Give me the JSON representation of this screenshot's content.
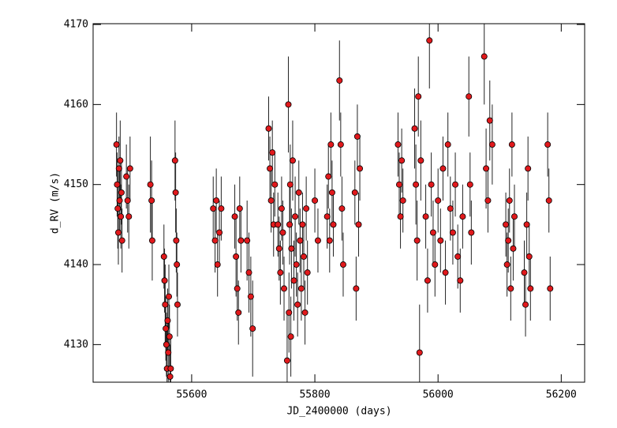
{
  "chart_data": {
    "type": "scatter",
    "xlabel": "JD_2400000 (days)",
    "ylabel": "d_RV (m/s)",
    "color": "#e0191c",
    "xlim": [
      55440,
      56238
    ],
    "ylim": [
      4125.3,
      4170.1
    ],
    "xticks": [
      55600,
      55800,
      56000,
      56200
    ],
    "yticks": [
      4130,
      4140,
      4150,
      4160,
      4170
    ],
    "x": [
      55478,
      55479,
      55480,
      55481,
      55482,
      55483,
      55484,
      55485,
      55486,
      55487,
      55494,
      55496,
      55498,
      55500,
      55533,
      55535,
      55536,
      55555,
      55556,
      55557,
      55558,
      55559,
      55560,
      55561,
      55562,
      55563,
      55564,
      55565,
      55566,
      55573,
      55574,
      55575,
      55576,
      55577,
      55635,
      55638,
      55640,
      55642,
      55645,
      55648,
      55670,
      55672,
      55674,
      55676,
      55678,
      55680,
      55690,
      55693,
      55696,
      55699,
      55725,
      55727,
      55729,
      55731,
      55733,
      55735,
      55740,
      55742,
      55744,
      55746,
      55748,
      55750,
      55755,
      55757,
      55758,
      55759,
      55760,
      55761,
      55762,
      55764,
      55766,
      55768,
      55770,
      55772,
      55774,
      55776,
      55778,
      55780,
      55782,
      55784,
      55786,
      55788,
      55800,
      55805,
      55820,
      55822,
      55824,
      55826,
      55828,
      55830,
      55840,
      55842,
      55844,
      55846,
      55865,
      55867,
      55869,
      55871,
      55873,
      55935,
      55937,
      55939,
      55941,
      55943,
      55962,
      55964,
      55966,
      55968,
      55970,
      55972,
      55980,
      55983,
      55986,
      55989,
      55992,
      55995,
      56000,
      56004,
      56008,
      56012,
      56016,
      56020,
      56024,
      56028,
      56032,
      56036,
      56040,
      56050,
      56052,
      56054,
      56075,
      56078,
      56081,
      56084,
      56088,
      56110,
      56112,
      56114,
      56116,
      56118,
      56120,
      56122,
      56124,
      56140,
      56142,
      56144,
      56146,
      56148,
      56150,
      56178,
      56180,
      56182
    ],
    "y": [
      4155,
      4150,
      4147,
      4144,
      4152,
      4148,
      4153,
      4146,
      4149,
      4143,
      4151,
      4148,
      4146,
      4152,
      4150,
      4148,
      4143,
      4141,
      4138,
      4135,
      4132,
      4130,
      4127,
      4133,
      4129,
      4136,
      4131,
      4126,
      4127,
      4153,
      4149,
      4143,
      4140,
      4135,
      4147,
      4143,
      4148,
      4140,
      4144,
      4147,
      4146,
      4141,
      4137,
      4134,
      4147,
      4143,
      4143,
      4139,
      4136,
      4132,
      4157,
      4152,
      4148,
      4154,
      4145,
      4150,
      4145,
      4142,
      4139,
      4147,
      4144,
      4137,
      4128,
      4160,
      4134,
      4145,
      4150,
      4131,
      4142,
      4153,
      4138,
      4146,
      4140,
      4135,
      4149,
      4143,
      4137,
      4145,
      4141,
      4134,
      4147,
      4139,
      4148,
      4143,
      4146,
      4151,
      4143,
      4155,
      4149,
      4145,
      4163,
      4155,
      4147,
      4140,
      4149,
      4137,
      4156,
      4145,
      4152,
      4155,
      4150,
      4146,
      4153,
      4148,
      4157,
      4150,
      4143,
      4161,
      4129,
      4153,
      4146,
      4138,
      4168,
      4150,
      4144,
      4140,
      4148,
      4143,
      4152,
      4139,
      4155,
      4147,
      4144,
      4150,
      4141,
      4138,
      4146,
      4161,
      4150,
      4144,
      4166,
      4152,
      4148,
      4158,
      4155,
      4145,
      4140,
      4143,
      4148,
      4137,
      4155,
      4142,
      4146,
      4139,
      4135,
      4145,
      4152,
      4141,
      4137,
      4155,
      4148,
      4137
    ],
    "errors": [
      4,
      4,
      5,
      4,
      4,
      4,
      5,
      4,
      4,
      4,
      4,
      4,
      4,
      4,
      6,
      5,
      5,
      4,
      4,
      5,
      4,
      4,
      5,
      4,
      4,
      4,
      4,
      4,
      4,
      5,
      5,
      4,
      4,
      4,
      4,
      4,
      4,
      4,
      4,
      4,
      4,
      5,
      4,
      4,
      4,
      4,
      5,
      5,
      5,
      6,
      4,
      4,
      4,
      4,
      4,
      4,
      4,
      4,
      4,
      4,
      4,
      4,
      6,
      6,
      5,
      5,
      5,
      5,
      5,
      5,
      5,
      5,
      4,
      4,
      4,
      4,
      4,
      4,
      4,
      4,
      4,
      4,
      4,
      4,
      4,
      4,
      4,
      4,
      4,
      4,
      5,
      4,
      4,
      4,
      4,
      4,
      4,
      4,
      4,
      4,
      4,
      4,
      4,
      4,
      5,
      5,
      5,
      5,
      6,
      5,
      4,
      4,
      6,
      4,
      4,
      4,
      4,
      4,
      4,
      4,
      4,
      4,
      4,
      4,
      4,
      4,
      4,
      5,
      4,
      4,
      6,
      5,
      4,
      5,
      5,
      4,
      4,
      4,
      4,
      4,
      4,
      4,
      4,
      4,
      4,
      4,
      4,
      4,
      4,
      4,
      4,
      4
    ]
  }
}
